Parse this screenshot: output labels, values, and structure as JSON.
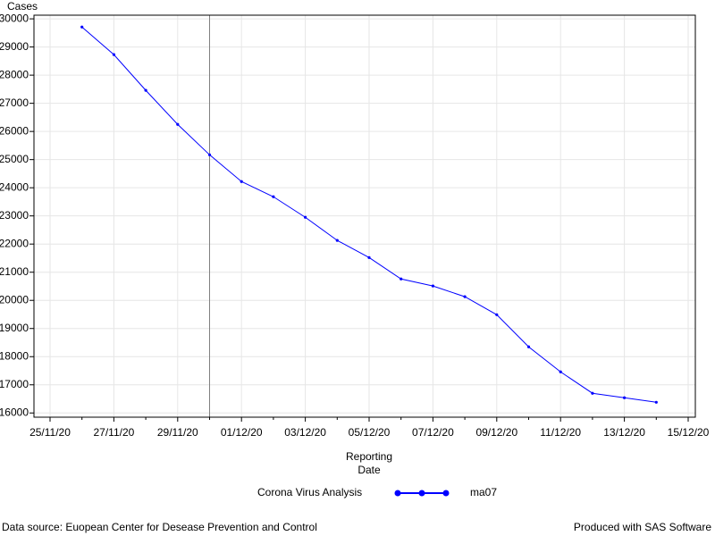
{
  "chart_data": {
    "type": "line",
    "y_label": "Cases",
    "x_label": "Reporting Date",
    "legend_title": "Corona Virus Analysis",
    "x": [
      "26/11/20",
      "27/11/20",
      "28/11/20",
      "29/11/20",
      "30/11/20",
      "01/12/20",
      "02/12/20",
      "03/12/20",
      "04/12/20",
      "05/12/20",
      "06/12/20",
      "07/12/20",
      "08/12/20",
      "09/12/20",
      "10/12/20",
      "11/12/20",
      "12/12/20",
      "13/12/20",
      "14/12/20"
    ],
    "series": [
      {
        "name": "ma07",
        "color": "#0000ff",
        "values": [
          29710,
          28730,
          27460,
          26250,
          25170,
          24220,
          23680,
          22950,
          22130,
          21520,
          20760,
          20510,
          20130,
          19490,
          18350,
          17460,
          16700,
          16540,
          16380
        ]
      }
    ],
    "xlim": [
      "25/11/20",
      "15/12/20"
    ],
    "xticks": [
      "25/11/20",
      "27/11/20",
      "29/11/20",
      "01/12/20",
      "03/12/20",
      "05/12/20",
      "07/12/20",
      "09/12/20",
      "11/12/20",
      "13/12/20",
      "15/12/20"
    ],
    "ylim": [
      15850,
      30130
    ],
    "yticks": [
      16000,
      17000,
      18000,
      19000,
      20000,
      21000,
      22000,
      23000,
      24000,
      25000,
      26000,
      27000,
      28000,
      29000,
      30000
    ],
    "reference_line_x": "30/11/20",
    "grid": true
  },
  "footer": {
    "left": "Data source: Euopean Center for Desease Prevention and Control",
    "right": "Produced with SAS Software"
  }
}
